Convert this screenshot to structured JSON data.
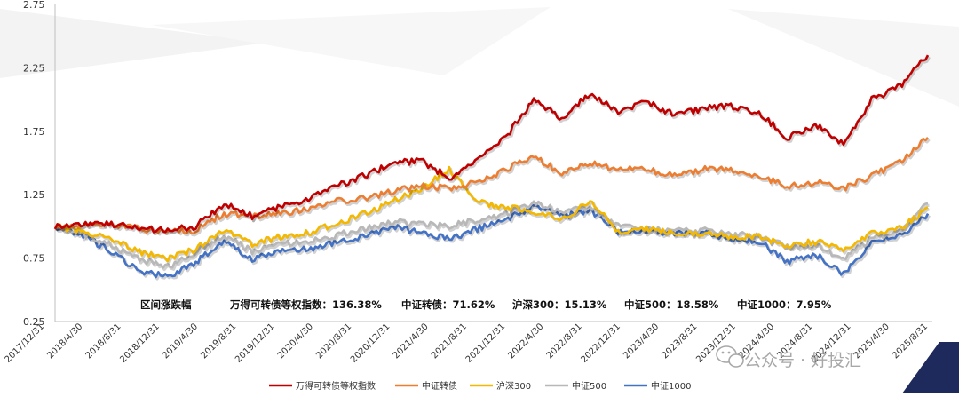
{
  "chart_data": {
    "type": "line",
    "title": "",
    "xlabel": "",
    "ylabel": "",
    "ylim": [
      0.25,
      2.75
    ],
    "y_ticks": [
      "0.25",
      "0.75",
      "1.25",
      "1.75",
      "2.25",
      "2.75"
    ],
    "x_ticks": [
      "2017/12/31",
      "2018/4/30",
      "2018/8/31",
      "2018/12/31",
      "2019/4/30",
      "2019/8/31",
      "2019/12/31",
      "2020/4/30",
      "2020/8/31",
      "2020/12/31",
      "2021/4/30",
      "2021/8/31",
      "2021/12/31",
      "2022/4/30",
      "2022/8/31",
      "2022/12/31",
      "2023/4/30",
      "2023/8/31",
      "2023/12/31",
      "2024/4/30",
      "2024/8/31",
      "2024/12/31",
      "2025/4/30",
      "2025/8/31"
    ],
    "grid": false,
    "legend_position": "bottom",
    "series": [
      {
        "name": "万得可转债等权指数",
        "color": "#c00000",
        "values": [
          1.0,
          1.02,
          1.02,
          0.98,
          0.97,
          1.0,
          1.18,
          1.08,
          1.15,
          1.22,
          1.32,
          1.4,
          1.5,
          1.52,
          1.38,
          1.52,
          1.7,
          2.0,
          1.85,
          2.05,
          1.9,
          1.98,
          1.88,
          1.93,
          1.95,
          1.9,
          1.7,
          1.8,
          1.65,
          2.0,
          2.1,
          2.35
        ]
      },
      {
        "name": "中证转债",
        "color": "#ed7d31",
        "values": [
          1.0,
          1.01,
          1.02,
          0.98,
          0.96,
          0.97,
          1.1,
          1.08,
          1.1,
          1.14,
          1.2,
          1.22,
          1.28,
          1.32,
          1.3,
          1.35,
          1.45,
          1.55,
          1.42,
          1.5,
          1.45,
          1.45,
          1.4,
          1.45,
          1.45,
          1.4,
          1.32,
          1.35,
          1.3,
          1.4,
          1.5,
          1.7
        ]
      },
      {
        "name": "沪深300",
        "color": "#f5b800",
        "values": [
          1.0,
          0.96,
          0.9,
          0.8,
          0.74,
          0.82,
          0.98,
          0.86,
          0.92,
          0.95,
          1.02,
          1.1,
          1.2,
          1.3,
          1.45,
          1.2,
          1.15,
          1.12,
          1.05,
          1.2,
          0.96,
          0.98,
          0.95,
          0.95,
          0.92,
          0.92,
          0.85,
          0.88,
          0.82,
          0.95,
          0.98,
          1.15
        ]
      },
      {
        "name": "中证500",
        "color": "#b8b8b8",
        "values": [
          1.0,
          0.94,
          0.85,
          0.74,
          0.68,
          0.8,
          0.93,
          0.8,
          0.86,
          0.88,
          0.93,
          0.98,
          1.04,
          1.02,
          1.0,
          1.05,
          1.1,
          1.18,
          1.12,
          1.15,
          1.0,
          0.98,
          0.96,
          0.97,
          0.94,
          0.92,
          0.85,
          0.85,
          0.75,
          0.9,
          0.95,
          1.18
        ]
      },
      {
        "name": "中证1000",
        "color": "#4472c4",
        "values": [
          1.0,
          0.93,
          0.8,
          0.65,
          0.6,
          0.72,
          0.88,
          0.74,
          0.8,
          0.82,
          0.88,
          0.92,
          1.0,
          0.95,
          0.9,
          0.98,
          1.05,
          1.16,
          1.08,
          1.12,
          0.95,
          0.96,
          0.95,
          0.96,
          0.9,
          0.88,
          0.72,
          0.78,
          0.62,
          0.88,
          0.92,
          1.1
        ]
      }
    ]
  },
  "annotation": {
    "label": "区间涨跌幅",
    "items": [
      "万得可转债等权指数：136.38%",
      "中证转债：71.62%",
      "沪深300：15.13%",
      "中证500：18.58%",
      "中证1000：7.95%"
    ]
  },
  "watermark": {
    "text": "公众号 · 好投汇",
    "icon": "wechat-icon"
  }
}
